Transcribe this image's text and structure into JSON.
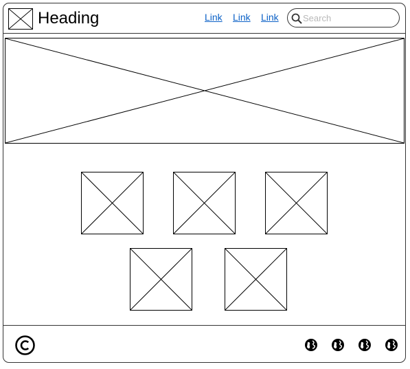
{
  "header": {
    "title": "Heading",
    "links": [
      "Link",
      "Link",
      "Link"
    ],
    "search": {
      "placeholder": "Search",
      "value": ""
    }
  },
  "icons": {
    "logo": "image-placeholder-icon",
    "search": "search-icon",
    "copyright": "copyright-icon",
    "social": [
      "globe-icon",
      "globe-icon",
      "globe-icon",
      "globe-icon"
    ]
  },
  "colors": {
    "link": "#0b61c7",
    "border": "#333333",
    "placeholder_text": "#b8b8b8"
  }
}
